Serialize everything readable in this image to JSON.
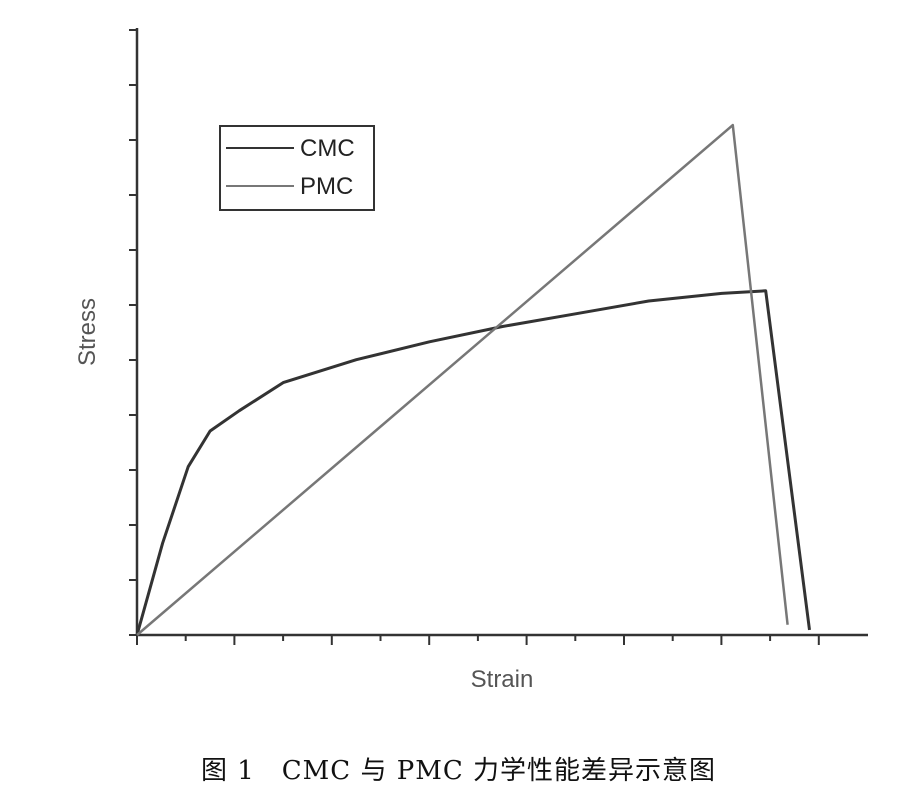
{
  "chart_data": {
    "type": "line",
    "xlabel": "Strain",
    "ylabel": "Stress",
    "xlim": [
      0,
      10
    ],
    "ylim": [
      0,
      10
    ],
    "legend_position": "top-left",
    "grid": false,
    "series": [
      {
        "name": "CMC",
        "color": "#333333",
        "x": [
          0,
          0.35,
          0.7,
          1.0,
          1.4,
          2.0,
          3.0,
          4.0,
          5.0,
          6.0,
          7.0,
          8.0,
          8.6,
          9.2
        ],
        "y": [
          0,
          1.8,
          3.3,
          4.0,
          4.4,
          4.95,
          5.4,
          5.75,
          6.05,
          6.3,
          6.55,
          6.7,
          6.75,
          0.1
        ]
      },
      {
        "name": "PMC",
        "color": "#777777",
        "x": [
          0,
          8.15,
          8.9
        ],
        "y": [
          0,
          10.0,
          0.2
        ]
      }
    ]
  },
  "caption": "图 1　CMC 与 PMC 力学性能差异示意图"
}
